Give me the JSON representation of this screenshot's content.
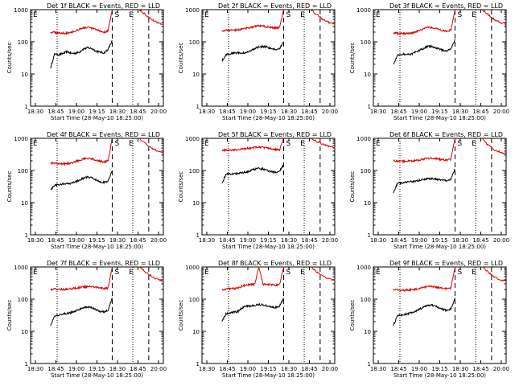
{
  "chart_data": [
    {
      "type": "line",
      "title": "Det 1f BLACK = Events, RED = LLD",
      "xlabel": "Start Time (28-May-10 18:25:00)",
      "ylabel": "Counts/sec",
      "yscale": "log",
      "ylim": [
        1,
        1000
      ],
      "x_ticks": [
        "18:30",
        "18:45",
        "19:00",
        "19:15",
        "18:30",
        "18:45",
        "20:00"
      ],
      "annotations": [
        "E",
        "S",
        "E"
      ],
      "series": [
        {
          "name": "BLACK = Events",
          "color": "#000000",
          "values": [
            15,
            42,
            40,
            43,
            50,
            44,
            44,
            48,
            60,
            65,
            62,
            52,
            48,
            45,
            58,
            110
          ]
        },
        {
          "name": "RED = LLD",
          "color": "#dd0000",
          "values": [
            200,
            195,
            190,
            185,
            190,
            200,
            215,
            250,
            270,
            280,
            265,
            240,
            215,
            200,
            220,
            1000
          ]
        },
        {
          "name": "RED = LLD",
          "color": "#dd0000",
          "values": [
            1000,
            700,
            500,
            400,
            350
          ]
        }
      ]
    },
    {
      "type": "line",
      "title": "Det 2f BLACK = Events, RED = LLD",
      "xlabel": "Start Time (28-May-10 18:25:00)",
      "ylabel": "Counts/sec",
      "yscale": "log",
      "ylim": [
        1,
        1000
      ],
      "x_ticks": [
        "18:30",
        "18:45",
        "19:00",
        "19:15",
        "18:30",
        "18:45",
        "20:00"
      ],
      "annotations": [
        "E",
        "S",
        "E"
      ],
      "series": [
        {
          "name": "BLACK = Events",
          "color": "#000000",
          "values": [
            25,
            40,
            42,
            45,
            46,
            44,
            48,
            52,
            62,
            70,
            72,
            68,
            60,
            58,
            60,
            100
          ]
        },
        {
          "name": "RED = LLD",
          "color": "#dd0000",
          "values": [
            220,
            230,
            225,
            230,
            240,
            250,
            265,
            280,
            300,
            310,
            305,
            290,
            280,
            270,
            280,
            1000
          ]
        },
        {
          "name": "RED = LLD",
          "color": "#dd0000",
          "values": [
            1000,
            700,
            500,
            400,
            360
          ]
        }
      ]
    },
    {
      "type": "line",
      "title": "Det 3f BLACK = Events, RED = LLD",
      "xlabel": "Start Time (28-May-10 18:25:00)",
      "ylabel": "Counts/sec",
      "yscale": "log",
      "ylim": [
        1,
        1000
      ],
      "x_ticks": [
        "18:30",
        "18:45",
        "19:00",
        "19:15",
        "18:30",
        "18:45",
        "20:00"
      ],
      "annotations": [
        "E",
        "S",
        "E"
      ],
      "series": [
        {
          "name": "BLACK = Events",
          "color": "#000000",
          "values": [
            20,
            38,
            40,
            42,
            40,
            45,
            52,
            60,
            70,
            72,
            68,
            60,
            55,
            52,
            58,
            120
          ]
        },
        {
          "name": "RED = LLD",
          "color": "#dd0000",
          "values": [
            190,
            185,
            180,
            180,
            185,
            195,
            215,
            250,
            275,
            285,
            270,
            245,
            225,
            215,
            230,
            1000
          ]
        },
        {
          "name": "RED = LLD",
          "color": "#dd0000",
          "values": [
            1000,
            700,
            500,
            400,
            350
          ]
        }
      ]
    },
    {
      "type": "line",
      "title": "Det 4f BLACK = Events, RED = LLD",
      "xlabel": "Start Time (28-May-10 18:25:00)",
      "ylabel": "Counts/sec",
      "yscale": "log",
      "ylim": [
        1,
        1000
      ],
      "x_ticks": [
        "18:30",
        "18:45",
        "19:00",
        "19:15",
        "18:30",
        "18:45",
        "20:00"
      ],
      "annotations": [
        "E",
        "S",
        "E"
      ],
      "series": [
        {
          "name": "BLACK = Events",
          "color": "#000000",
          "values": [
            25,
            35,
            36,
            38,
            40,
            40,
            44,
            50,
            58,
            62,
            60,
            52,
            45,
            42,
            48,
            100
          ]
        },
        {
          "name": "RED = LLD",
          "color": "#dd0000",
          "values": [
            170,
            165,
            165,
            160,
            165,
            170,
            185,
            210,
            230,
            240,
            230,
            210,
            195,
            185,
            200,
            1000
          ]
        },
        {
          "name": "RED = LLD",
          "color": "#dd0000",
          "values": [
            1000,
            700,
            500,
            400,
            350
          ]
        }
      ]
    },
    {
      "type": "line",
      "title": "Det 5f BLACK = Events, RED = LLD",
      "xlabel": "Start Time (28-May-10 18:25:00)",
      "ylabel": "Counts/sec",
      "yscale": "log",
      "ylim": [
        1,
        1000
      ],
      "x_ticks": [
        "18:30",
        "18:45",
        "19:00",
        "19:15",
        "18:30",
        "18:45",
        "20:00"
      ],
      "annotations": [
        "E",
        "S",
        "E"
      ],
      "series": [
        {
          "name": "BLACK = Events",
          "color": "#000000",
          "values": [
            40,
            75,
            78,
            80,
            82,
            85,
            90,
            100,
            110,
            115,
            112,
            100,
            92,
            88,
            95,
            150
          ]
        },
        {
          "name": "RED = LLD",
          "color": "#dd0000",
          "values": [
            420,
            430,
            430,
            440,
            450,
            460,
            480,
            500,
            520,
            530,
            520,
            500,
            480,
            450,
            430,
            1000
          ]
        },
        {
          "name": "RED = LLD",
          "color": "#dd0000",
          "values": [
            1000,
            800,
            650,
            550,
            500
          ]
        }
      ]
    },
    {
      "type": "line",
      "title": "Det 6f BLACK = Events, RED = LLD",
      "xlabel": "Start Time (28-May-10 18:25:00)",
      "ylabel": "Counts/sec",
      "yscale": "log",
      "ylim": [
        1,
        1000
      ],
      "x_ticks": [
        "18:30",
        "18:45",
        "19:00",
        "19:15",
        "18:30",
        "18:45",
        "20:00"
      ],
      "annotations": [
        "E",
        "S",
        "E"
      ],
      "series": [
        {
          "name": "BLACK = Events",
          "color": "#000000",
          "values": [
            20,
            40,
            42,
            44,
            45,
            46,
            48,
            52,
            55,
            56,
            55,
            52,
            50,
            48,
            52,
            110
          ]
        },
        {
          "name": "RED = LLD",
          "color": "#dd0000",
          "values": [
            200,
            195,
            195,
            190,
            195,
            200,
            210,
            220,
            235,
            240,
            235,
            225,
            215,
            210,
            220,
            1000
          ]
        },
        {
          "name": "RED = LLD",
          "color": "#dd0000",
          "values": [
            1000,
            600,
            450,
            380,
            330
          ]
        }
      ]
    },
    {
      "type": "line",
      "title": "Det 7f BLACK = Events, RED = LLD",
      "xlabel": "Start Time (28-May-10 18:25:00)",
      "ylabel": "Counts/sec",
      "yscale": "log",
      "ylim": [
        1,
        1000
      ],
      "x_ticks": [
        "18:30",
        "18:45",
        "19:00",
        "19:15",
        "18:30",
        "18:45",
        "20:00"
      ],
      "annotations": [
        "E",
        "S",
        "E"
      ],
      "series": [
        {
          "name": "BLACK = Events",
          "color": "#000000",
          "values": [
            15,
            30,
            32,
            34,
            36,
            38,
            42,
            48,
            55,
            58,
            55,
            48,
            42,
            40,
            45,
            110
          ]
        },
        {
          "name": "RED = LLD",
          "color": "#dd0000",
          "values": [
            200,
            205,
            200,
            200,
            205,
            210,
            220,
            230,
            240,
            245,
            240,
            230,
            220,
            215,
            225,
            1000
          ]
        },
        {
          "name": "RED = LLD",
          "color": "#dd0000",
          "values": [
            1000,
            700,
            520,
            420,
            360
          ]
        }
      ]
    },
    {
      "type": "line",
      "title": "Det 8f BLACK = Events, RED = LLD",
      "xlabel": "Start Time (28-May-10 18:25:00)",
      "ylabel": "Counts/sec",
      "yscale": "log",
      "ylim": [
        1,
        1000
      ],
      "x_ticks": [
        "18:30",
        "18:45",
        "19:00",
        "19:15",
        "18:30",
        "18:45",
        "20:00"
      ],
      "annotations": [
        "E",
        "S",
        "E"
      ],
      "series": [
        {
          "name": "BLACK = Events",
          "color": "#000000",
          "values": [
            20,
            35,
            38,
            40,
            42,
            55,
            60,
            62,
            65,
            68,
            66,
            62,
            58,
            55,
            60,
            110
          ]
        },
        {
          "name": "RED = LLD",
          "color": "#dd0000",
          "values": [
            200,
            205,
            210,
            215,
            225,
            260,
            280,
            285,
            290,
            1000,
            290,
            285,
            280,
            275,
            285,
            1000
          ]
        },
        {
          "name": "RED = LLD",
          "color": "#dd0000",
          "values": [
            1000,
            700,
            520,
            430,
            380
          ]
        }
      ]
    },
    {
      "type": "line",
      "title": "Det 9f BLACK = Events, RED = LLD",
      "xlabel": "Start Time (28-May-10 18:25:00)",
      "ylabel": "Counts/sec",
      "yscale": "log",
      "ylim": [
        1,
        1000
      ],
      "x_ticks": [
        "18:30",
        "18:45",
        "19:00",
        "19:15",
        "18:30",
        "18:45",
        "20:00"
      ],
      "annotations": [
        "E",
        "S",
        "E"
      ],
      "series": [
        {
          "name": "BLACK = Events",
          "color": "#000000",
          "values": [
            15,
            30,
            32,
            34,
            36,
            40,
            46,
            54,
            62,
            65,
            62,
            54,
            48,
            45,
            50,
            110
          ]
        },
        {
          "name": "RED = LLD",
          "color": "#dd0000",
          "values": [
            200,
            195,
            190,
            190,
            195,
            200,
            210,
            225,
            240,
            250,
            245,
            230,
            215,
            210,
            220,
            1000
          ]
        },
        {
          "name": "RED = LLD",
          "color": "#dd0000",
          "values": [
            1000,
            700,
            500,
            400,
            350
          ]
        }
      ]
    }
  ]
}
